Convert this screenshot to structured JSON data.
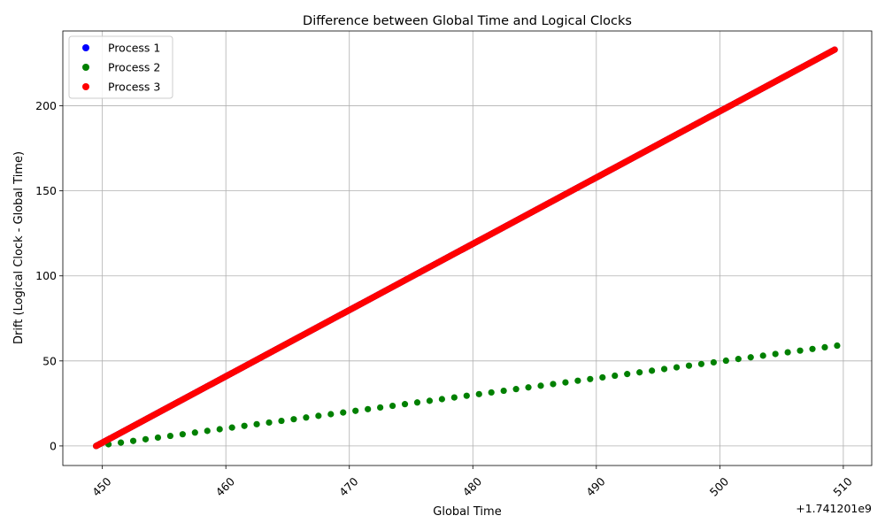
{
  "chart_data": {
    "type": "scatter",
    "title": "Difference between Global Time and Logical Clocks",
    "xlabel": "Global Time",
    "ylabel": "Drift (Logical Clock - Global Time)",
    "x_offset_label": "+1.741201e9",
    "xlim": [
      446.8,
      512.3
    ],
    "ylim": [
      -11.5,
      244
    ],
    "xticks": [
      450,
      460,
      470,
      480,
      490,
      500,
      510
    ],
    "yticks": [
      0,
      50,
      100,
      150,
      200
    ],
    "grid": true,
    "legend_position": "upper left",
    "series": [
      {
        "name": "Process 1",
        "color": "#0000ff",
        "x_start": 449.5,
        "x_end": 509.3,
        "x_step": 0.1,
        "y_start": 0,
        "y_end": 233,
        "note_hidden": "points hidden beneath Process 3"
      },
      {
        "name": "Process 2",
        "color": "#008000",
        "x_start": 449.5,
        "x_end": 509.0,
        "x_step": 1.0,
        "y_start": 0,
        "y_end": 59
      },
      {
        "name": "Process 3",
        "color": "#ff0000",
        "x_start": 449.5,
        "x_end": 509.3,
        "x_step": 0.1,
        "y_start": 0,
        "y_end": 233
      }
    ]
  }
}
